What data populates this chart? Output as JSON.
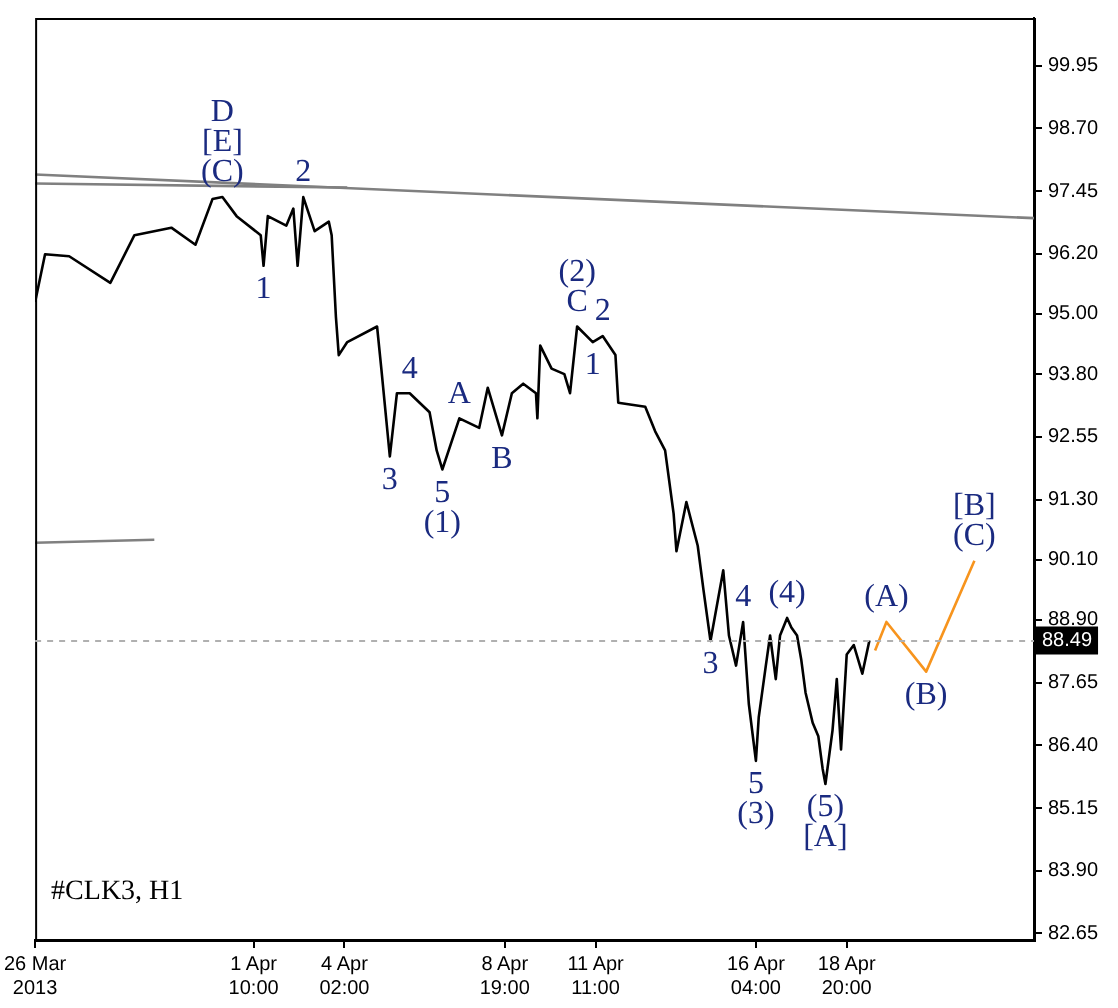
{
  "chart_data": {
    "type": "line",
    "annotations": [
      {
        "text": "D",
        "x": "2013-03-31T12:00",
        "y": 97.33
      },
      {
        "text": "[E]",
        "x": "2013-03-31T12:00",
        "y": 97.33
      },
      {
        "text": "(C)",
        "x": "2013-03-31T12:00",
        "y": 97.33
      },
      {
        "text": "2",
        "x": "2013-04-02T21:00",
        "y": 97.33
      },
      {
        "text": "1",
        "x": "2013-04-01T17:00",
        "y": 95.96
      },
      {
        "text": "4",
        "x": "2013-04-06T00:00",
        "y": 93.42
      },
      {
        "text": "A",
        "x": "2013-04-07T11:00",
        "y": 92.92
      },
      {
        "text": "3",
        "x": "2013-04-05T10:00",
        "y": 92.16
      },
      {
        "text": "5",
        "x": "2013-04-06T23:00",
        "y": 91.9
      },
      {
        "text": "(1)",
        "x": "2013-04-06T23:00",
        "y": 91.9
      },
      {
        "text": "B",
        "x": "2013-04-08T17:00",
        "y": 92.58
      },
      {
        "text": "(2)",
        "x": "2013-04-10T22:00",
        "y": 94.75
      },
      {
        "text": "C",
        "x": "2013-04-10T22:00",
        "y": 94.75
      },
      {
        "text": "2",
        "x": "2013-04-11T16:00",
        "y": 94.56
      },
      {
        "text": "1",
        "x": "2013-04-11T09:00",
        "y": 94.44
      },
      {
        "text": "4",
        "x": "2013-04-15T19:00",
        "y": 88.86
      },
      {
        "text": "3",
        "x": "2013-04-14T20:00",
        "y": 88.48
      },
      {
        "text": "5",
        "x": "2013-04-16T04:00",
        "y": 86.09
      },
      {
        "text": "(3)",
        "x": "2013-04-16T04:00",
        "y": 86.09
      },
      {
        "text": "(4)",
        "x": "2013-04-17T02:00",
        "y": 88.94
      },
      {
        "text": "(5)",
        "x": "2013-04-18T05:00",
        "y": 85.63
      },
      {
        "text": "[A]",
        "x": "2013-04-18T05:00",
        "y": 85.63
      },
      {
        "text": "(A)",
        "x": "2013-04-20T00:00",
        "y": 88.86
      },
      {
        "text": "(B)",
        "x": "2013-04-21T04:00",
        "y": 87.87
      },
      {
        "text": "[B]",
        "x": "2013-04-22T14:00",
        "y": 90.08
      },
      {
        "text": "(C)",
        "x": "2013-04-22T14:00",
        "y": 90.08
      },
      "#CLK3, H1"
    ],
    "series": [
      {
        "color": "#000000",
        "x": [
          "2013-03-26T00:00",
          "2013-03-26T07:00",
          "2013-03-27T00:00",
          "2013-03-28T05:00",
          "2013-03-28T22:00",
          "2013-03-30T00:00",
          "2013-03-30T17:00",
          "2013-03-31T05:00",
          "2013-03-31T12:00",
          "2013-03-31T22:00",
          "2013-04-01T15:00",
          "2013-04-01T17:00",
          "2013-04-01T20:00",
          "2013-04-02T09:00",
          "2013-04-02T14:00",
          "2013-04-02T17:00",
          "2013-04-02T21:00",
          "2013-04-03T05:00",
          "2013-04-03T15:00",
          "2013-04-03T17:00",
          "2013-04-03T20:00",
          "2013-04-03T22:00",
          "2013-04-04T04:00",
          "2013-04-05T01:00",
          "2013-04-05T04:00",
          "2013-04-05T10:00",
          "2013-04-05T15:00",
          "2013-04-06T00:00",
          "2013-04-06T14:00",
          "2013-04-06T19:00",
          "2013-04-06T23:00",
          "2013-04-07T11:00",
          "2013-04-08T01:00",
          "2013-04-08T07:00",
          "2013-04-08T17:00",
          "2013-04-09T00:00",
          "2013-04-09T08:00",
          "2013-04-09T17:00",
          "2013-04-09T18:00",
          "2013-04-09T20:00",
          "2013-04-10T04:00",
          "2013-04-10T13:00",
          "2013-04-10T17:00",
          "2013-04-10T22:00",
          "2013-04-11T09:00",
          "2013-04-11T16:00",
          "2013-04-12T01:00",
          "2013-04-12T03:00",
          "2013-04-12T22:00",
          "2013-04-13T05:00",
          "2013-04-13T12:00",
          "2013-04-13T18:00",
          "2013-04-13T20:00",
          "2013-04-14T03:00",
          "2013-04-14T11:00",
          "2013-04-14T15:00",
          "2013-04-14T20:00",
          "2013-04-15T05:00",
          "2013-04-15T09:00",
          "2013-04-15T14:00",
          "2013-04-15T19:00",
          "2013-04-15T23:00",
          "2013-04-16T04:00",
          "2013-04-16T06:00",
          "2013-04-16T11:00",
          "2013-04-16T14:00",
          "2013-04-16T18:00",
          "2013-04-16T21:00",
          "2013-04-17T02:00",
          "2013-04-17T05:00",
          "2013-04-17T09:00",
          "2013-04-17T12:00",
          "2013-04-17T15:00",
          "2013-04-17T20:00",
          "2013-04-18T00:00",
          "2013-04-18T03:00",
          "2013-04-18T05:00",
          "2013-04-18T10:00",
          "2013-04-18T13:00",
          "2013-04-18T16:00",
          "2013-04-18T20:00",
          "2013-04-19T01:00",
          "2013-04-19T07:00",
          "2013-04-19T12:00"
        ],
        "values": [
          95.24,
          96.19,
          96.15,
          95.62,
          96.57,
          96.72,
          96.38,
          97.29,
          97.33,
          96.95,
          96.57,
          95.96,
          96.95,
          96.76,
          97.1,
          95.96,
          97.33,
          96.65,
          96.84,
          96.57,
          94.94,
          94.18,
          94.44,
          94.75,
          93.91,
          92.16,
          93.42,
          93.42,
          93.04,
          92.28,
          91.9,
          92.92,
          92.73,
          93.53,
          92.58,
          93.42,
          93.61,
          93.42,
          92.92,
          94.37,
          93.91,
          93.8,
          93.42,
          94.75,
          94.44,
          94.56,
          94.18,
          93.23,
          93.15,
          92.66,
          92.28,
          91.02,
          90.27,
          91.25,
          90.38,
          89.51,
          88.48,
          89.89,
          88.59,
          87.99,
          88.86,
          87.23,
          86.09,
          86.96,
          87.99,
          88.59,
          87.72,
          88.59,
          88.94,
          88.75,
          88.59,
          88.1,
          87.45,
          86.85,
          86.58,
          85.94,
          85.63,
          86.7,
          87.72,
          86.32,
          88.21,
          88.4,
          87.83,
          88.49
        ]
      },
      {
        "color": "#f7941d",
        "x": [
          "2013-04-19T16:00",
          "2013-04-20T00:00",
          "2013-04-21T04:00",
          "2013-04-22T14:00"
        ],
        "values": [
          88.29,
          88.86,
          87.87,
          90.08
        ]
      },
      {
        "color": "#808080",
        "x": [
          "2013-03-26T00:00",
          "2013-04-24T08:00"
        ],
        "values": [
          97.78,
          96.91
        ]
      },
      {
        "color": "#808080",
        "x": [
          "2013-03-26T00:00",
          "2013-04-04T04:00"
        ],
        "values": [
          97.6,
          97.52
        ]
      },
      {
        "color": "#808080",
        "x": [
          "2013-03-26T00:00",
          "2013-03-29T12:00"
        ],
        "values": [
          90.44,
          90.5
        ]
      }
    ],
    "xlim": [
      "2013-03-26T00:00",
      "2013-04-24T08:00"
    ],
    "xticks": [
      {
        "value": "2013-03-26T00:00",
        "label": "26 Mar 2013"
      },
      {
        "value": "2013-04-01T10:00",
        "label": "1 Apr 10:00"
      },
      {
        "value": "2013-04-04T02:00",
        "label": "4 Apr 02:00"
      },
      {
        "value": "2013-04-08T19:00",
        "label": "8 Apr 19:00"
      },
      {
        "value": "2013-04-11T11:00",
        "label": "11 Apr 11:00"
      },
      {
        "value": "2013-04-16T04:00",
        "label": "16 Apr 04:00"
      },
      {
        "value": "2013-04-18T20:00",
        "label": "18 Apr 20:00"
      }
    ],
    "ylim": [
      82.52,
      100.9
    ],
    "yticks": [
      99.95,
      {
        "value": 98.7,
        "label": "98.70"
      },
      97.45,
      {
        "value": 96.2,
        "label": "96.20"
      },
      {
        "value": 95,
        "label": "95.00"
      },
      {
        "value": 93.8,
        "label": "93.80"
      },
      92.55,
      {
        "value": 91.3,
        "label": "91.30"
      },
      {
        "value": 90.1,
        "label": "90.10"
      },
      {
        "value": 88.9,
        "label": "88.90"
      },
      87.65,
      {
        "value": 86.4,
        "label": "86.40"
      },
      85.15,
      {
        "value": 83.9,
        "label": "83.90"
      },
      82.65
    ],
    "ref_lines": [
      {
        "axis": "y",
        "value": 88.49,
        "label": "88.49",
        "color": "#b0b0b0"
      }
    ],
    "grid": false,
    "legend": false,
    "marker": "none",
    "line_style": "solid"
  }
}
